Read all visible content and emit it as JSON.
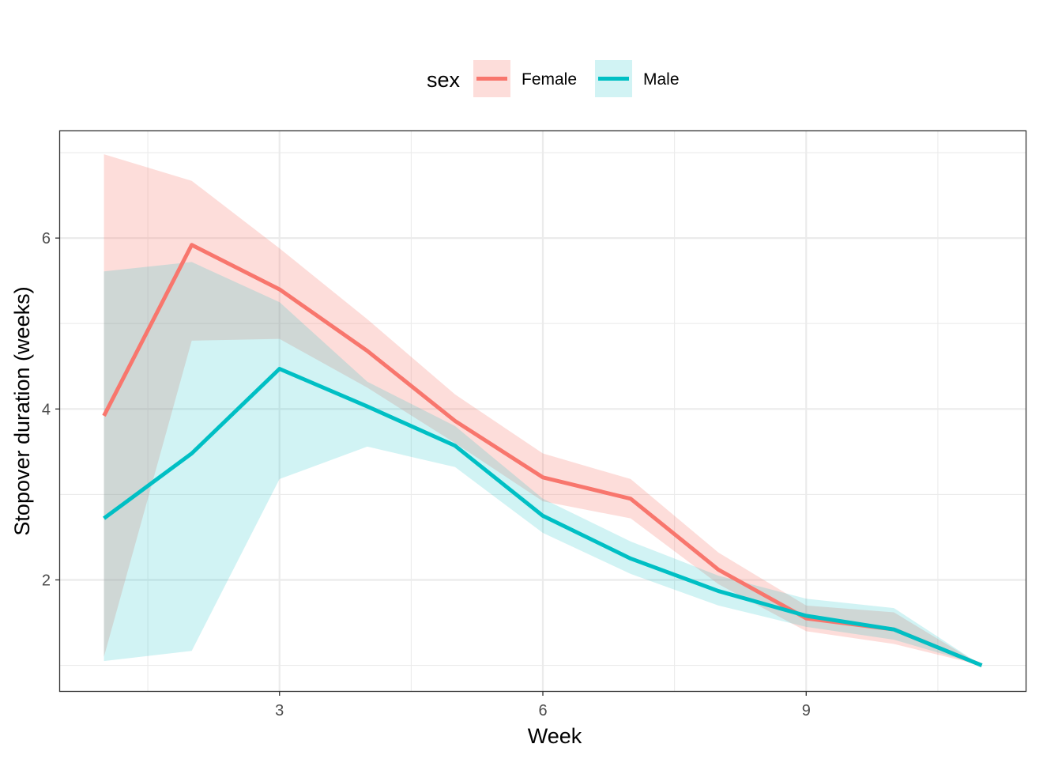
{
  "chart_data": {
    "type": "line",
    "xlabel": "Week",
    "ylabel": "Stopover duration (weeks)",
    "xlim": [
      0.5,
      11.5
    ],
    "ylim": [
      0.7,
      7.25
    ],
    "x_ticks": [
      3,
      6,
      9
    ],
    "x_tick_labels": [
      "3",
      "6",
      "9"
    ],
    "y_ticks": [
      2,
      4,
      6
    ],
    "y_tick_labels": [
      "2",
      "4",
      "6"
    ],
    "grid": true,
    "legend": {
      "title": "sex",
      "position": "top"
    },
    "x": [
      1,
      2,
      3,
      4,
      5,
      6,
      7,
      8,
      9,
      10,
      11
    ],
    "series": [
      {
        "name": "Female",
        "color": "#F8766D",
        "values": [
          3.92,
          5.92,
          5.4,
          4.68,
          3.86,
          3.2,
          2.95,
          2.12,
          1.55,
          1.42,
          1.0
        ],
        "lower": [
          1.1,
          4.8,
          4.82,
          4.25,
          3.6,
          2.92,
          2.72,
          1.95,
          1.4,
          1.25,
          1.0
        ],
        "upper": [
          6.98,
          6.67,
          5.88,
          5.05,
          4.17,
          3.48,
          3.18,
          2.32,
          1.7,
          1.62,
          1.0
        ]
      },
      {
        "name": "Male",
        "color": "#00BFC4",
        "values": [
          2.72,
          3.48,
          4.47,
          4.03,
          3.57,
          2.75,
          2.25,
          1.87,
          1.58,
          1.42,
          1.0
        ],
        "lower": [
          1.05,
          1.17,
          3.18,
          3.56,
          3.32,
          2.55,
          2.07,
          1.7,
          1.45,
          1.3,
          1.0
        ],
        "upper": [
          5.61,
          5.72,
          5.25,
          4.32,
          3.8,
          2.95,
          2.45,
          2.05,
          1.78,
          1.67,
          1.0
        ]
      }
    ]
  }
}
